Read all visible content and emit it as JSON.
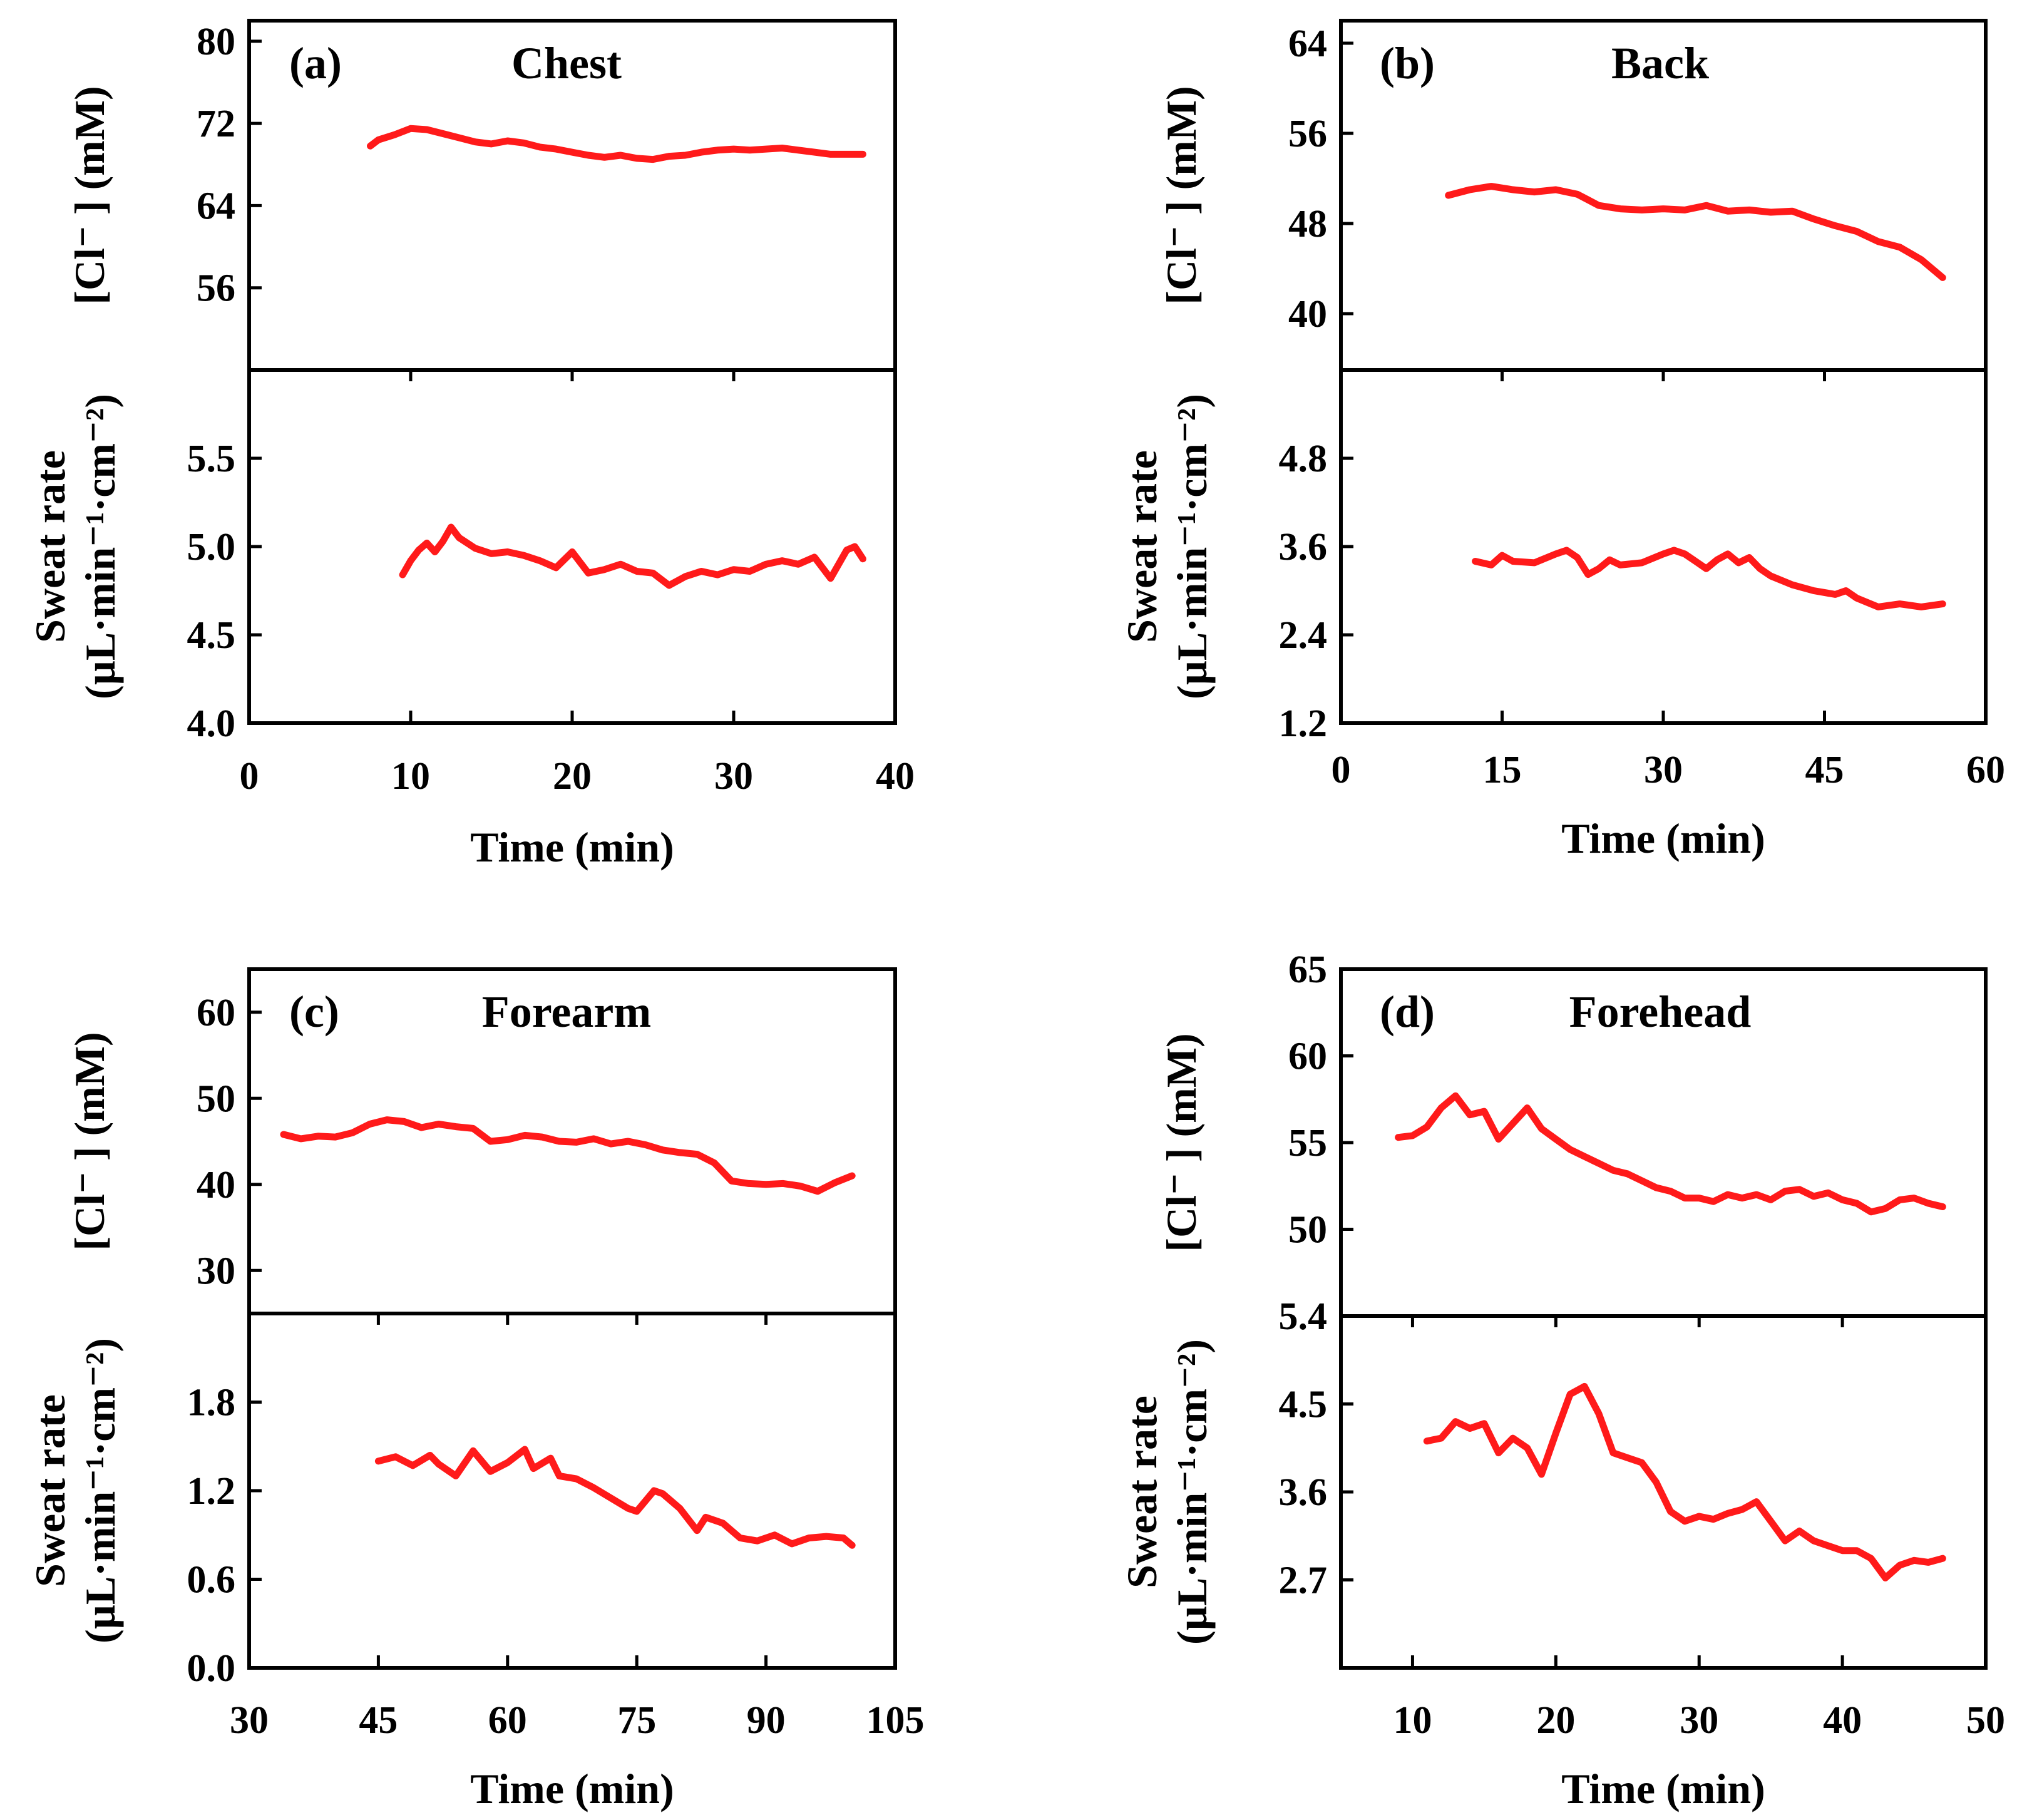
{
  "chart_data": [
    {
      "type": "line",
      "panel": "(a)",
      "title": "Chest",
      "xlabel": "Time (min)",
      "xlim": [
        0,
        40
      ],
      "xticks": [
        0,
        10,
        20,
        30,
        40
      ],
      "color": "#ff1a1a",
      "upper": {
        "ylabel": "[Cl⁻ ] (mM)",
        "ylim": [
          48,
          82
        ],
        "yticks": [
          56,
          64,
          72,
          80
        ],
        "x": [
          7.5,
          8,
          9,
          10,
          11,
          12,
          13,
          14,
          15,
          16,
          17,
          18,
          19,
          20,
          21,
          22,
          23,
          24,
          25,
          26,
          27,
          28,
          29,
          30,
          31,
          32,
          33,
          34,
          35,
          36,
          37,
          38
        ],
        "y": [
          69.8,
          70.4,
          70.9,
          71.5,
          71.4,
          71.0,
          70.6,
          70.2,
          70.0,
          70.3,
          70.1,
          69.7,
          69.5,
          69.2,
          68.9,
          68.7,
          68.9,
          68.6,
          68.5,
          68.8,
          68.9,
          69.2,
          69.4,
          69.5,
          69.4,
          69.5,
          69.6,
          69.4,
          69.2,
          69.0,
          69.0,
          69.0
        ]
      },
      "lower": {
        "ylabel": "Sweat rate (µL·min⁻¹·cm⁻²)",
        "ylim": [
          4.0,
          6.0
        ],
        "yticks": [
          4.0,
          4.5,
          5.0,
          5.5
        ],
        "x": [
          9.5,
          10,
          10.5,
          11,
          11.5,
          12,
          12.5,
          13,
          14,
          15,
          16,
          17,
          18,
          19,
          20,
          21,
          22,
          23,
          24,
          25,
          26,
          27,
          28,
          29,
          30,
          31,
          32,
          33,
          34,
          35,
          36,
          37,
          37.5,
          38
        ],
        "y": [
          4.84,
          4.92,
          4.98,
          5.02,
          4.97,
          5.03,
          5.11,
          5.05,
          4.99,
          4.96,
          4.97,
          4.95,
          4.92,
          4.88,
          4.97,
          4.85,
          4.87,
          4.9,
          4.86,
          4.85,
          4.78,
          4.83,
          4.86,
          4.84,
          4.87,
          4.86,
          4.9,
          4.92,
          4.9,
          4.94,
          4.82,
          4.98,
          5.0,
          4.93
        ]
      }
    },
    {
      "type": "line",
      "panel": "(b)",
      "title": "Back",
      "xlabel": "Time (min)",
      "xlim": [
        0,
        60
      ],
      "xticks": [
        0,
        15,
        30,
        45,
        60
      ],
      "color": "#ff1a1a",
      "upper": {
        "ylabel": "[Cl⁻ ] (mM)",
        "ylim": [
          35,
          66
        ],
        "yticks": [
          40,
          48,
          56,
          64
        ],
        "x": [
          10,
          12,
          14,
          16,
          18,
          20,
          22,
          24,
          26,
          28,
          30,
          32,
          34,
          36,
          38,
          40,
          42,
          44,
          46,
          48,
          50,
          52,
          54,
          56
        ],
        "y": [
          50.5,
          51.0,
          51.3,
          51.0,
          50.8,
          51.0,
          50.6,
          49.6,
          49.3,
          49.2,
          49.3,
          49.2,
          49.6,
          49.1,
          49.2,
          49.0,
          49.1,
          48.4,
          47.8,
          47.3,
          46.4,
          45.9,
          44.8,
          43.2
        ]
      },
      "lower": {
        "ylabel": "Sweat rate (µL·min⁻¹·cm⁻²)",
        "ylim": [
          1.2,
          6.0
        ],
        "yticks": [
          1.2,
          2.4,
          3.6,
          4.8
        ],
        "x": [
          12.5,
          14,
          15,
          16,
          18,
          20,
          21,
          22,
          23,
          24,
          25,
          26,
          28,
          30,
          31,
          32,
          33,
          34,
          35,
          36,
          37,
          38,
          39,
          40,
          42,
          44,
          46,
          47,
          48,
          50,
          52,
          54,
          56
        ],
        "y": [
          3.4,
          3.35,
          3.48,
          3.4,
          3.38,
          3.5,
          3.55,
          3.45,
          3.22,
          3.3,
          3.42,
          3.35,
          3.38,
          3.5,
          3.55,
          3.5,
          3.4,
          3.3,
          3.42,
          3.5,
          3.38,
          3.45,
          3.3,
          3.2,
          3.08,
          3.0,
          2.95,
          3.0,
          2.9,
          2.78,
          2.82,
          2.78,
          2.82
        ]
      }
    },
    {
      "type": "line",
      "panel": "(c)",
      "title": "Forearm",
      "xlabel": "Time (min)",
      "xlim": [
        30,
        105
      ],
      "xticks": [
        30,
        45,
        60,
        75,
        90,
        105
      ],
      "color": "#ff1a1a",
      "upper": {
        "ylabel": "[Cl⁻ ] (mM)",
        "ylim": [
          25,
          65
        ],
        "yticks": [
          30,
          40,
          50,
          60
        ],
        "x": [
          34,
          36,
          38,
          40,
          42,
          44,
          46,
          48,
          50,
          52,
          54,
          56,
          58,
          60,
          62,
          64,
          66,
          68,
          70,
          72,
          74,
          76,
          78,
          80,
          82,
          84,
          86,
          88,
          90,
          92,
          94,
          96,
          98,
          100
        ],
        "y": [
          45.8,
          45.3,
          45.6,
          45.5,
          46.0,
          47.0,
          47.5,
          47.3,
          46.6,
          47.0,
          46.7,
          46.5,
          45.0,
          45.2,
          45.7,
          45.5,
          45.0,
          44.9,
          45.3,
          44.7,
          45.0,
          44.6,
          44.0,
          43.7,
          43.5,
          42.5,
          40.4,
          40.1,
          40.0,
          40.1,
          39.8,
          39.2,
          40.2,
          41.0
        ]
      },
      "lower": {
        "ylabel": "Sweat rate (µL·min⁻¹·cm⁻²)",
        "ylim": [
          0.0,
          2.4
        ],
        "yticks": [
          0.0,
          0.6,
          1.2,
          1.8
        ],
        "x": [
          45,
          47,
          49,
          51,
          52,
          54,
          56,
          58,
          60,
          62,
          63,
          65,
          66,
          68,
          70,
          72,
          74,
          75,
          77,
          78,
          80,
          82,
          83,
          85,
          87,
          89,
          91,
          93,
          95,
          97,
          99,
          100
        ],
        "y": [
          1.4,
          1.43,
          1.37,
          1.44,
          1.38,
          1.3,
          1.47,
          1.33,
          1.39,
          1.48,
          1.35,
          1.42,
          1.3,
          1.28,
          1.22,
          1.15,
          1.08,
          1.06,
          1.2,
          1.18,
          1.08,
          0.93,
          1.02,
          0.98,
          0.88,
          0.86,
          0.9,
          0.84,
          0.88,
          0.89,
          0.88,
          0.83
        ]
      }
    },
    {
      "type": "line",
      "panel": "(d)",
      "title": "Forehead",
      "xlabel": "Time (min)",
      "xlim": [
        5,
        50
      ],
      "xticks": [
        10,
        20,
        30,
        40,
        50
      ],
      "color": "#ff1a1a",
      "upper": {
        "ylabel": "[Cl⁻ ] (mM)",
        "ylim": [
          45,
          65
        ],
        "yticks": [
          50,
          55,
          60,
          65
        ],
        "x": [
          9,
          10,
          11,
          12,
          13,
          14,
          15,
          16,
          17,
          18,
          19,
          20,
          21,
          22,
          23,
          24,
          25,
          26,
          27,
          28,
          29,
          30,
          31,
          32,
          33,
          34,
          35,
          36,
          37,
          38,
          39,
          40,
          41,
          42,
          43,
          44,
          45,
          46,
          47
        ],
        "y": [
          55.3,
          55.4,
          55.9,
          57.0,
          57.7,
          56.6,
          56.8,
          55.2,
          56.1,
          57.0,
          55.8,
          55.2,
          54.6,
          54.2,
          53.8,
          53.4,
          53.2,
          52.8,
          52.4,
          52.2,
          51.8,
          51.8,
          51.6,
          52.0,
          51.8,
          52.0,
          51.7,
          52.2,
          52.3,
          51.9,
          52.1,
          51.7,
          51.5,
          51.0,
          51.2,
          51.7,
          51.8,
          51.5,
          51.3
        ]
      },
      "lower": {
        "ylabel": "Sweat rate (µL·min⁻¹·cm⁻²)",
        "ylim": [
          1.8,
          5.4
        ],
        "yticks": [
          2.7,
          3.6,
          4.5,
          5.4
        ],
        "x": [
          11,
          12,
          13,
          14,
          15,
          16,
          17,
          18,
          19,
          20,
          21,
          22,
          23,
          24,
          25,
          26,
          27,
          28,
          29,
          30,
          31,
          32,
          33,
          34,
          35,
          36,
          37,
          38,
          39,
          40,
          41,
          42,
          43,
          44,
          45,
          46,
          47
        ],
        "y": [
          4.12,
          4.15,
          4.32,
          4.25,
          4.3,
          4.0,
          4.15,
          4.05,
          3.78,
          4.2,
          4.6,
          4.68,
          4.4,
          4.0,
          3.95,
          3.9,
          3.7,
          3.4,
          3.3,
          3.35,
          3.32,
          3.38,
          3.42,
          3.5,
          3.3,
          3.1,
          3.2,
          3.1,
          3.05,
          3.0,
          3.0,
          2.92,
          2.72,
          2.85,
          2.9,
          2.88,
          2.92
        ]
      }
    }
  ]
}
